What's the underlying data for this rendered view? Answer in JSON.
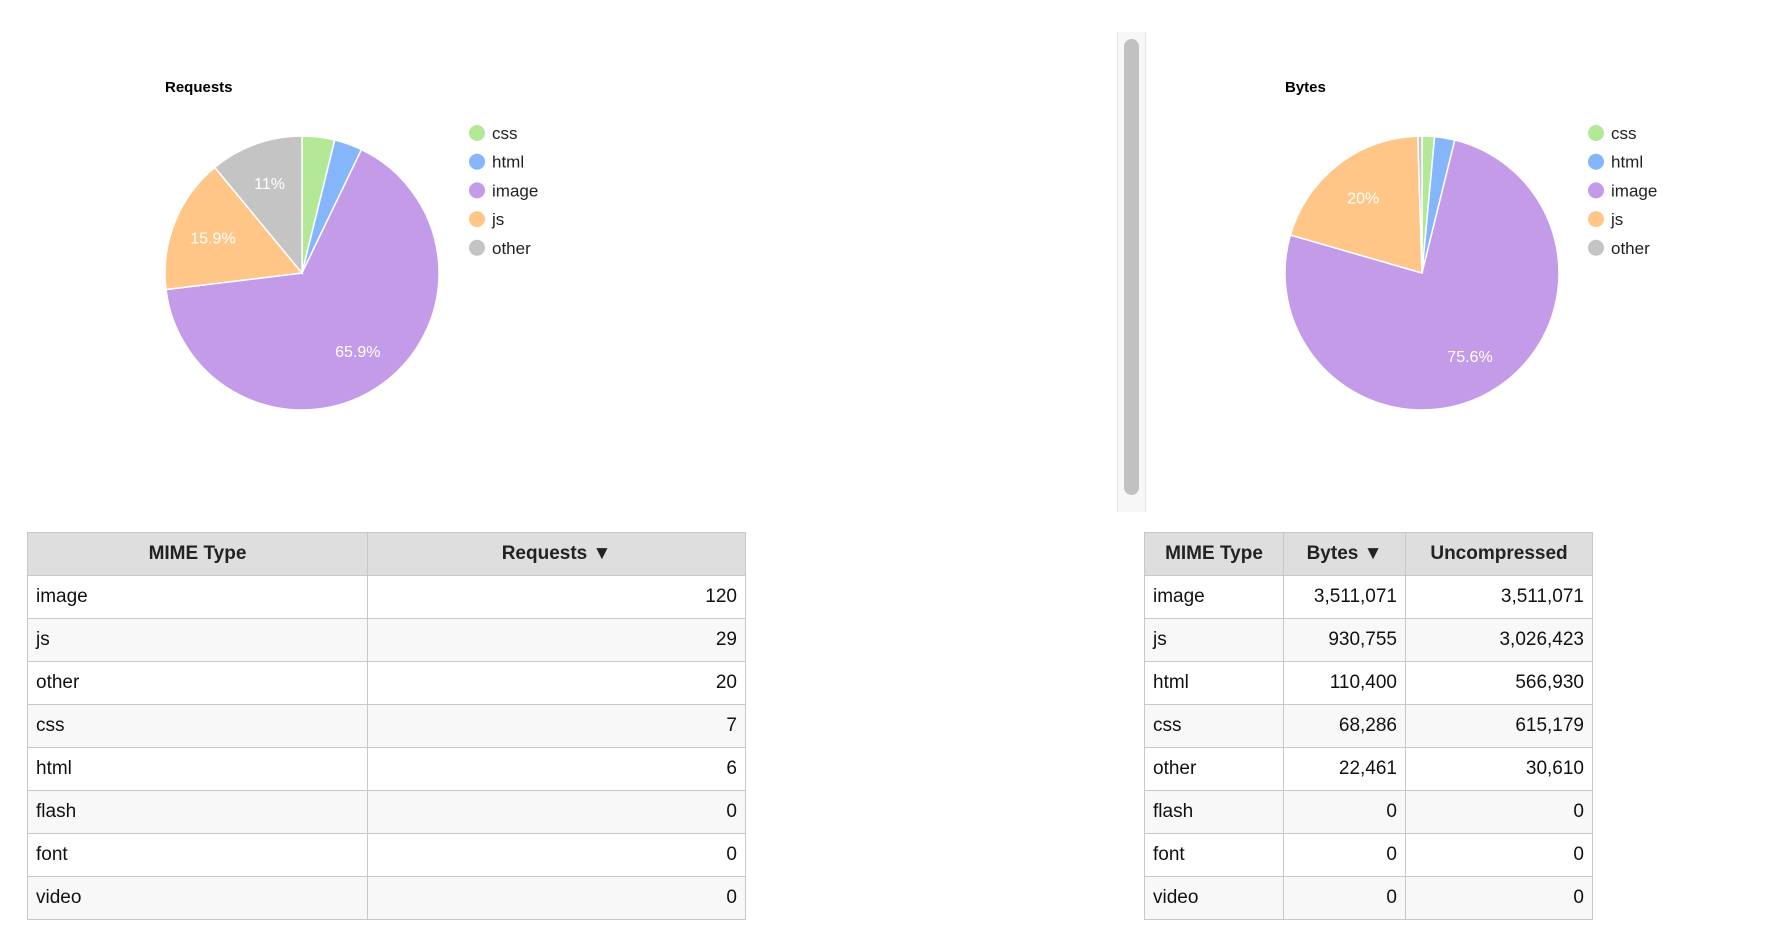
{
  "chart_data": [
    {
      "type": "pie",
      "title": "Requests",
      "legend_position": "right",
      "categories": [
        "css",
        "html",
        "image",
        "js",
        "other"
      ],
      "values": [
        7,
        6,
        120,
        29,
        20
      ],
      "slice_labels": [
        "",
        "",
        "65.9%",
        "15.9%",
        "11%"
      ],
      "colors": [
        "#b3e896",
        "#85b6fc",
        "#c49be8",
        "#ffc687",
        "#c4c4c4"
      ]
    },
    {
      "type": "pie",
      "title": "Bytes",
      "legend_position": "right",
      "categories": [
        "css",
        "html",
        "image",
        "js",
        "other"
      ],
      "values": [
        68286,
        110400,
        3511071,
        930755,
        22461
      ],
      "slice_labels": [
        "",
        "",
        "75.6%",
        "20%",
        ""
      ],
      "colors": [
        "#b3e896",
        "#85b6fc",
        "#c49be8",
        "#ffc687",
        "#c4c4c4"
      ]
    }
  ],
  "requests_table": {
    "headers": [
      "MIME Type",
      "Requests ▼"
    ],
    "rows": [
      [
        "image",
        "120"
      ],
      [
        "js",
        "29"
      ],
      [
        "other",
        "20"
      ],
      [
        "css",
        "7"
      ],
      [
        "html",
        "6"
      ],
      [
        "flash",
        "0"
      ],
      [
        "font",
        "0"
      ],
      [
        "video",
        "0"
      ]
    ]
  },
  "bytes_table": {
    "headers": [
      "MIME Type",
      "Bytes ▼",
      "Uncompressed"
    ],
    "rows": [
      [
        "image",
        "3,511,071",
        "3,511,071"
      ],
      [
        "js",
        "930,755",
        "3,026,423"
      ],
      [
        "html",
        "110,400",
        "566,930"
      ],
      [
        "css",
        "68,286",
        "615,179"
      ],
      [
        "other",
        "22,461",
        "30,610"
      ],
      [
        "flash",
        "0",
        "0"
      ],
      [
        "font",
        "0",
        "0"
      ],
      [
        "video",
        "0",
        "0"
      ]
    ]
  }
}
